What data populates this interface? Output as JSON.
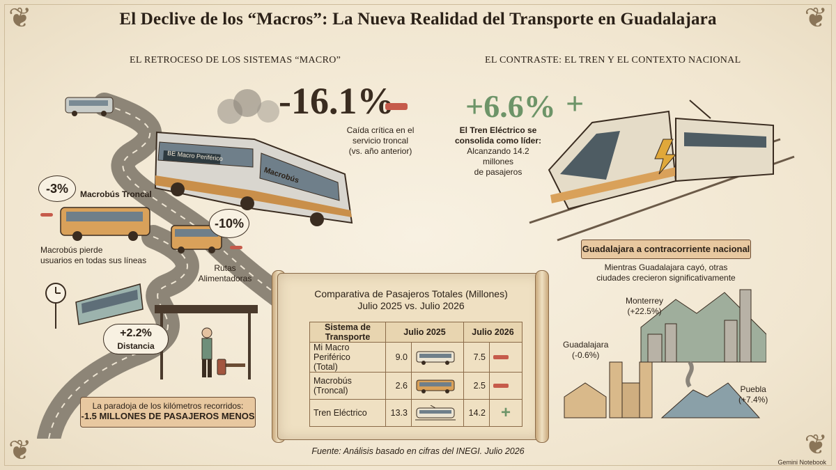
{
  "title": "El Declive de los “Macros”: La Nueva Realidad del Transporte en Guadalajara",
  "left_section": {
    "heading": "EL RETROCESO DE LOS SISTEMAS “MACRO”",
    "headline_pct": "-16.1%",
    "headline_caption_1": "Caída crítica en el",
    "headline_caption_2": "servicio troncal",
    "headline_caption_3": "(vs. año anterior)",
    "bus_sign": "BE Macro Periférico",
    "bus_side": "Macrobús",
    "troncal_pct": "-3%",
    "troncal_label": "Macrobús Troncal",
    "troncal_note_1": "Macrobús pierde",
    "troncal_note_2": "usuarios en todas sus líneas",
    "alimentadoras_pct": "-10%",
    "alimentadoras_label_1": "Rutas",
    "alimentadoras_label_2": "Alimentadoras",
    "distance_pct": "+2.2%",
    "distance_label": "Distancia",
    "paradox_line_1": "La paradoja de los kilómetros recorridos:",
    "paradox_line_2": "-1.5 MILLONES DE PASAJEROS MENOS"
  },
  "right_section": {
    "heading": "EL CONTRASTE: EL TREN Y EL CONTEXTO NACIONAL",
    "headline_pct": "+6.6%",
    "caption_1": "El Tren Eléctrico se",
    "caption_2": "consolida como líder:",
    "caption_3": "Alcanzando 14.2 millones",
    "caption_4": "de pasajeros",
    "ribbon": "Guadalajara a contracorriente nacional",
    "ribbon_note_1": "Mientras Guadalajara cayó, otras",
    "ribbon_note_2": "ciudades crecieron significativamente",
    "cities": [
      {
        "name": "Monterrey",
        "change": "(+22.5%)"
      },
      {
        "name": "Guadalajara",
        "change": "(-0.6%)"
      },
      {
        "name": "Puebla",
        "change": "(+7.4%)"
      }
    ]
  },
  "table": {
    "title_1": "Comparativa de Pasajeros Totales (Millones)",
    "title_2": "Julio 2025 vs. Julio 2026",
    "columns": [
      "Sistema de Transporte",
      "Julio 2025",
      "Julio 2026"
    ],
    "rows": [
      {
        "name_1": "Mi Macro Periférico",
        "name_2": "(Total)",
        "v2025": "9.0",
        "v2026": "7.5",
        "trend": "down",
        "icon": "bus-icon"
      },
      {
        "name_1": "Macrobús",
        "name_2": "(Troncal)",
        "v2025": "2.6",
        "v2026": "2.5",
        "trend": "down",
        "icon": "bus-icon"
      },
      {
        "name_1": "Tren Eléctrico",
        "name_2": "",
        "v2025": "13.3",
        "v2026": "14.2",
        "trend": "up",
        "icon": "train-icon"
      }
    ]
  },
  "source": "Fuente: Análisis basado en cifras del INEGI. Julio 2026",
  "brand": "Gemini Notebook",
  "colors": {
    "down": "#c65b4b",
    "up": "#6d9468",
    "ink": "#2b2118",
    "paper": "#f3ead8"
  }
}
